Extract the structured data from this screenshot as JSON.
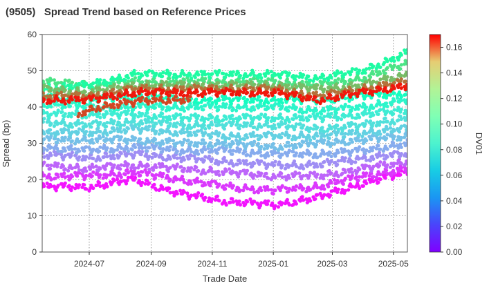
{
  "chart_data": {
    "type": "scatter",
    "title": "(9505)   Spread Trend based on Reference Prices",
    "xlabel": "Trade Date",
    "ylabel": "Spread (bp)",
    "colorbar_label": "DV01",
    "x_ticks": [
      "2024-07",
      "2024-09",
      "2024-11",
      "2025-01",
      "2025-03",
      "2025-05"
    ],
    "x_range": [
      "2024-05-15",
      "2025-05-15"
    ],
    "y_ticks": [
      0,
      10,
      20,
      30,
      40,
      50,
      60
    ],
    "ylim": [
      0,
      60
    ],
    "colorbar_ticks": [
      "0.00",
      "0.02",
      "0.04",
      "0.06",
      "0.08",
      "0.10",
      "0.12",
      "0.14",
      "0.16"
    ],
    "colorbar_range": [
      0,
      0.17
    ],
    "colormap": "rainbow",
    "grid": true,
    "grid_style": "dotted",
    "series": [
      {
        "dv01": 0.004,
        "points": [
          [
            "2024-05-15",
            18
          ],
          [
            "2024-07-01",
            18
          ],
          [
            "2024-08-15",
            20
          ],
          [
            "2024-10-01",
            16
          ],
          [
            "2024-11-15",
            14
          ],
          [
            "2025-01-01",
            13
          ],
          [
            "2025-02-15",
            15
          ],
          [
            "2025-04-01",
            19
          ],
          [
            "2025-05-15",
            22
          ]
        ]
      },
      {
        "dv01": 0.012,
        "points": [
          [
            "2024-05-15",
            21
          ],
          [
            "2024-07-01",
            21
          ],
          [
            "2024-08-15",
            22
          ],
          [
            "2024-10-01",
            20
          ],
          [
            "2024-11-15",
            18
          ],
          [
            "2025-01-01",
            17
          ],
          [
            "2025-02-15",
            18
          ],
          [
            "2025-04-01",
            21
          ],
          [
            "2025-05-15",
            23
          ]
        ]
      },
      {
        "dv01": 0.022,
        "points": [
          [
            "2024-05-15",
            24
          ],
          [
            "2024-07-01",
            23
          ],
          [
            "2024-08-15",
            24
          ],
          [
            "2024-10-01",
            23
          ],
          [
            "2024-11-15",
            22
          ],
          [
            "2025-01-01",
            21
          ],
          [
            "2025-02-15",
            21
          ],
          [
            "2025-04-01",
            23
          ],
          [
            "2025-05-15",
            25
          ]
        ]
      },
      {
        "dv01": 0.032,
        "points": [
          [
            "2024-05-15",
            27
          ],
          [
            "2024-07-01",
            26
          ],
          [
            "2024-08-15",
            27
          ],
          [
            "2024-10-01",
            26
          ],
          [
            "2024-11-15",
            25
          ],
          [
            "2025-01-01",
            24
          ],
          [
            "2025-02-15",
            24
          ],
          [
            "2025-04-01",
            26
          ],
          [
            "2025-05-15",
            27
          ]
        ]
      },
      {
        "dv01": 0.04,
        "points": [
          [
            "2024-05-15",
            29
          ],
          [
            "2024-07-01",
            28
          ],
          [
            "2024-08-15",
            29
          ],
          [
            "2024-10-01",
            28
          ],
          [
            "2024-11-15",
            28
          ],
          [
            "2025-01-01",
            27
          ],
          [
            "2025-02-15",
            27
          ],
          [
            "2025-04-01",
            28
          ],
          [
            "2025-05-15",
            30
          ]
        ]
      },
      {
        "dv01": 0.046,
        "points": [
          [
            "2024-05-15",
            31
          ],
          [
            "2024-07-01",
            31
          ],
          [
            "2024-08-15",
            31
          ],
          [
            "2024-10-01",
            30
          ],
          [
            "2024-11-15",
            30
          ],
          [
            "2025-01-01",
            29
          ],
          [
            "2025-02-15",
            30
          ],
          [
            "2025-04-01",
            31
          ],
          [
            "2025-05-15",
            32
          ]
        ]
      },
      {
        "dv01": 0.052,
        "points": [
          [
            "2024-05-15",
            33
          ],
          [
            "2024-07-01",
            33
          ],
          [
            "2024-08-15",
            34
          ],
          [
            "2024-10-01",
            33
          ],
          [
            "2024-11-15",
            32
          ],
          [
            "2025-01-01",
            32
          ],
          [
            "2025-02-15",
            32
          ],
          [
            "2025-04-01",
            33
          ],
          [
            "2025-05-15",
            34
          ]
        ]
      },
      {
        "dv01": 0.058,
        "points": [
          [
            "2024-05-15",
            36
          ],
          [
            "2024-07-01",
            35
          ],
          [
            "2024-08-15",
            36
          ],
          [
            "2024-10-01",
            35
          ],
          [
            "2024-11-15",
            35
          ],
          [
            "2025-01-01",
            35
          ],
          [
            "2025-02-15",
            34
          ],
          [
            "2025-04-01",
            35
          ],
          [
            "2025-05-15",
            37
          ]
        ]
      },
      {
        "dv01": 0.064,
        "points": [
          [
            "2024-05-15",
            38
          ],
          [
            "2024-07-01",
            38
          ],
          [
            "2024-08-15",
            38
          ],
          [
            "2024-10-01",
            37
          ],
          [
            "2024-11-15",
            37
          ],
          [
            "2025-01-01",
            37
          ],
          [
            "2025-02-15",
            37
          ],
          [
            "2025-04-01",
            38
          ],
          [
            "2025-05-15",
            39
          ]
        ]
      },
      {
        "dv01": 0.07,
        "points": [
          [
            "2024-05-15",
            41
          ],
          [
            "2024-07-01",
            40
          ],
          [
            "2024-08-15",
            40
          ],
          [
            "2024-10-01",
            40
          ],
          [
            "2024-11-15",
            40
          ],
          [
            "2025-01-01",
            40
          ],
          [
            "2025-02-15",
            39
          ],
          [
            "2025-04-01",
            40
          ],
          [
            "2025-05-15",
            42
          ]
        ]
      },
      {
        "dv01": 0.078,
        "points": [
          [
            "2024-05-15",
            43
          ],
          [
            "2024-07-01",
            42
          ],
          [
            "2024-08-15",
            43
          ],
          [
            "2024-10-01",
            42
          ],
          [
            "2024-11-15",
            42
          ],
          [
            "2025-01-01",
            42
          ],
          [
            "2025-02-15",
            42
          ],
          [
            "2025-04-01",
            43
          ],
          [
            "2025-05-15",
            44
          ]
        ]
      },
      {
        "dv01": 0.11,
        "points": [
          [
            "2024-05-15",
            47
          ],
          [
            "2024-07-01",
            46
          ],
          [
            "2024-08-15",
            47
          ],
          [
            "2024-10-01",
            47
          ],
          [
            "2024-11-15",
            47
          ],
          [
            "2025-01-01",
            47
          ],
          [
            "2025-02-15",
            46
          ],
          [
            "2025-04-01",
            48
          ],
          [
            "2025-05-15",
            52
          ]
        ]
      },
      {
        "dv01": 0.095,
        "points": [
          [
            "2024-05-15",
            45
          ],
          [
            "2024-07-01",
            46
          ],
          [
            "2024-08-15",
            49
          ],
          [
            "2024-10-01",
            49
          ],
          [
            "2024-11-15",
            49
          ],
          [
            "2025-01-01",
            49
          ],
          [
            "2025-02-15",
            48
          ],
          [
            "2025-04-01",
            50
          ],
          [
            "2025-05-15",
            55
          ]
        ]
      },
      {
        "dv01": 0.125,
        "points": [
          [
            "2024-05-15",
            45
          ],
          [
            "2024-07-01",
            44
          ],
          [
            "2024-08-15",
            46
          ],
          [
            "2024-10-01",
            46
          ],
          [
            "2024-11-15",
            46
          ],
          [
            "2025-01-01",
            46
          ],
          [
            "2025-02-15",
            45
          ],
          [
            "2025-04-01",
            46
          ],
          [
            "2025-05-15",
            49
          ]
        ]
      },
      {
        "dv01": 0.145,
        "points": [
          [
            "2024-05-15",
            43
          ],
          [
            "2024-07-01",
            43
          ],
          [
            "2024-08-15",
            45
          ],
          [
            "2024-10-01",
            45
          ],
          [
            "2024-11-15",
            45
          ],
          [
            "2025-01-01",
            45
          ],
          [
            "2025-02-15",
            43
          ],
          [
            "2025-04-01",
            45
          ],
          [
            "2025-05-15",
            47
          ]
        ]
      },
      {
        "dv01": 0.165,
        "points": [
          [
            "2024-05-15",
            42
          ],
          [
            "2024-07-01",
            42
          ],
          [
            "2024-08-15",
            44
          ],
          [
            "2024-10-01",
            44
          ],
          [
            "2024-11-15",
            44
          ],
          [
            "2025-01-01",
            44
          ],
          [
            "2025-02-15",
            42
          ],
          [
            "2025-04-01",
            44
          ],
          [
            "2025-05-15",
            46
          ]
        ]
      },
      {
        "dv01": 0.155,
        "points": [
          [
            "2024-06-20",
            38
          ],
          [
            "2024-07-10",
            40
          ],
          [
            "2024-09-01",
            42
          ],
          [
            "2024-10-10",
            42
          ]
        ]
      }
    ]
  }
}
